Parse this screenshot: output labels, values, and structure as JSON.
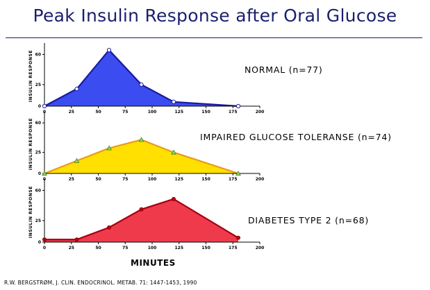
{
  "title": "Peak Insulin Response after Oral Glucose",
  "xlabel": "MINUTES",
  "citation": "R.W. BERGSTRØM, J. CLIN. ENDOCRINOL. METAB. 71: 1447-1453, 1990",
  "chart_data": [
    {
      "type": "area",
      "caption": "NORMAL   (n=77)",
      "ylabel": "INSULIN RESPONSE",
      "x": [
        0,
        30,
        60,
        90,
        120,
        180
      ],
      "y": [
        0,
        20,
        65,
        25,
        5,
        0
      ],
      "xticks": [
        0,
        25,
        50,
        75,
        100,
        125,
        150,
        175,
        200
      ],
      "yticks": [
        0,
        25,
        60
      ],
      "xlim": [
        0,
        200
      ],
      "ylim": [
        0,
        70
      ],
      "fill": "#3b4cf0",
      "stroke": "#1a1aa0",
      "marker": "circle-open"
    },
    {
      "type": "area",
      "caption": "IMPAIRED GLUCOSE TOLERANSE  (n=74)",
      "ylabel": "INSULIN RESPONSE",
      "x": [
        0,
        30,
        60,
        90,
        120,
        180
      ],
      "y": [
        0,
        15,
        30,
        40,
        25,
        0
      ],
      "xticks": [
        0,
        25,
        50,
        75,
        100,
        125,
        150,
        175,
        200
      ],
      "yticks": [
        0,
        25,
        60
      ],
      "xlim": [
        0,
        200
      ],
      "ylim": [
        0,
        70
      ],
      "fill": "#ffe000",
      "stroke": "#e89a1a",
      "marker": "triangle-green"
    },
    {
      "type": "area",
      "caption": "DIABETES TYPE 2   (n=68)",
      "ylabel": "INSULIN RESPONSE",
      "x": [
        0,
        30,
        60,
        90,
        120,
        180
      ],
      "y": [
        3,
        3,
        17,
        38,
        50,
        5
      ],
      "xticks": [
        0,
        25,
        50,
        75,
        100,
        125,
        150,
        175,
        200
      ],
      "yticks": [
        0,
        25,
        60
      ],
      "xlim": [
        0,
        200
      ],
      "ylim": [
        0,
        70
      ],
      "fill": "#ef3a4c",
      "stroke": "#a30010",
      "marker": "dot-red"
    }
  ]
}
